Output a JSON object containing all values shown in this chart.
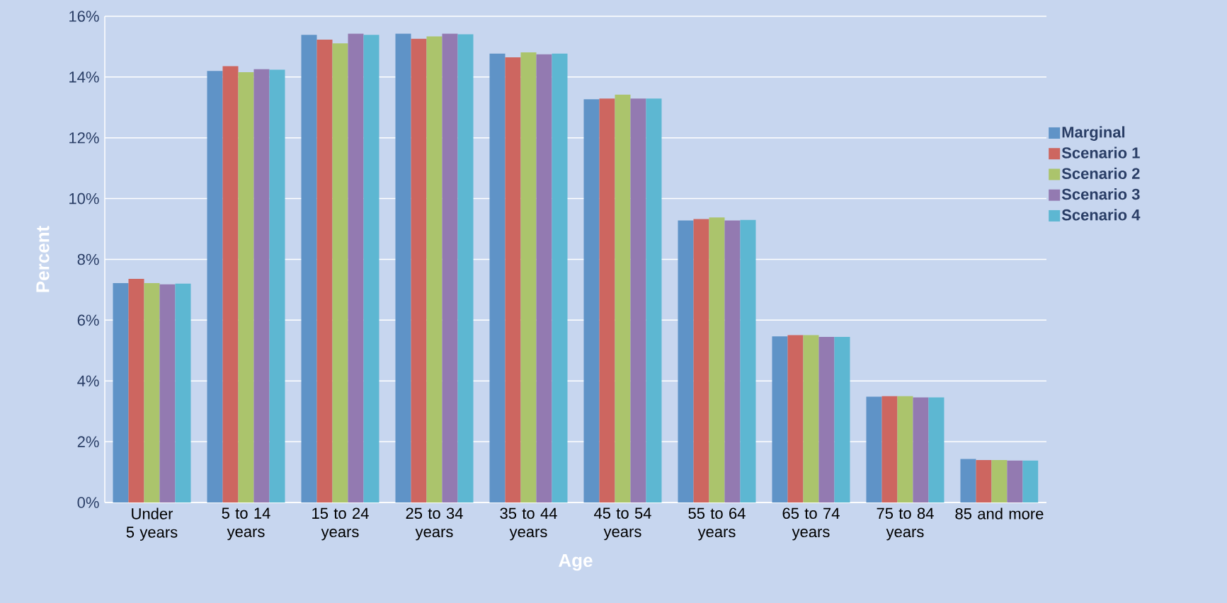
{
  "chart_data": {
    "type": "bar",
    "xlabel": "Age",
    "ylabel": "Percent",
    "categories": [
      "Under 5 years",
      "5 to 14 years",
      "15 to 24 years",
      "25 to 34 years",
      "35 to 44 years",
      "45 to 54 years",
      "55 to 64 years",
      "65 to 74 years",
      "75 to 84 years",
      "85 and more"
    ],
    "series": [
      {
        "name": "Marginal",
        "color": "#5f93c7",
        "values": [
          7.22,
          14.2,
          15.39,
          15.43,
          14.77,
          13.27,
          9.28,
          5.47,
          3.48,
          1.43
        ]
      },
      {
        "name": "Scenario 1",
        "color": "#cd6660",
        "values": [
          7.36,
          14.36,
          15.23,
          15.26,
          14.65,
          13.29,
          9.33,
          5.51,
          3.5,
          1.4
        ]
      },
      {
        "name": "Scenario 2",
        "color": "#abc46c",
        "values": [
          7.22,
          14.16,
          15.11,
          15.34,
          14.81,
          13.42,
          9.38,
          5.51,
          3.5,
          1.4
        ]
      },
      {
        "name": "Scenario 3",
        "color": "#937ab1",
        "values": [
          7.18,
          14.26,
          15.43,
          15.43,
          14.75,
          13.29,
          9.28,
          5.45,
          3.46,
          1.38
        ]
      },
      {
        "name": "Scenario 4",
        "color": "#5db7d2",
        "values": [
          7.2,
          14.24,
          15.39,
          15.41,
          14.77,
          13.29,
          9.3,
          5.45,
          3.46,
          1.38
        ]
      }
    ],
    "ylim": [
      0,
      16
    ],
    "yticks": [
      {
        "value": 0,
        "label": "0%"
      },
      {
        "value": 2,
        "label": "2%"
      },
      {
        "value": 4,
        "label": "4%"
      },
      {
        "value": 6,
        "label": "6%"
      },
      {
        "value": 8,
        "label": "8%"
      },
      {
        "value": 10,
        "label": "10%"
      },
      {
        "value": 12,
        "label": "12%"
      },
      {
        "value": 14,
        "label": "14%"
      },
      {
        "value": 16,
        "label": "16%"
      }
    ],
    "grid": "y",
    "legend": "right"
  }
}
